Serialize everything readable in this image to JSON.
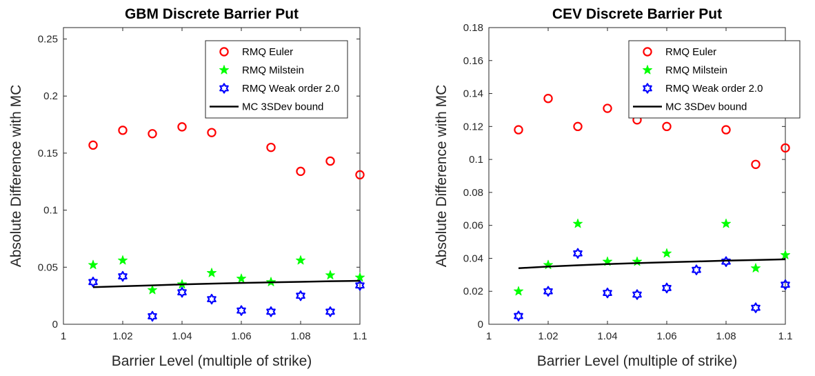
{
  "chart_data": [
    {
      "type": "scatter",
      "title": "GBM Discrete Barrier Put",
      "xlabel": "Barrier Level (multiple of strike)",
      "ylabel": "Absolute Difference with MC",
      "xlim": [
        1,
        1.1
      ],
      "ylim": [
        0,
        0.26
      ],
      "xticks": [
        "1",
        "1.02",
        "1.04",
        "1.06",
        "1.08",
        "1.1"
      ],
      "yticks": [
        "0",
        "0.05",
        "0.1",
        "0.15",
        "0.2",
        "0.25"
      ],
      "xtick_values": [
        1,
        1.02,
        1.04,
        1.06,
        1.08,
        1.1
      ],
      "ytick_values": [
        0,
        0.05,
        0.1,
        0.15,
        0.2,
        0.25
      ],
      "x": [
        1.01,
        1.02,
        1.03,
        1.04,
        1.05,
        1.06,
        1.07,
        1.08,
        1.09,
        1.1
      ],
      "legend_position": "top-right",
      "grid": false,
      "series": [
        {
          "name": "RMQ Euler",
          "marker": "circle",
          "color": "#ff0000",
          "values": [
            0.157,
            0.17,
            0.167,
            0.173,
            0.168,
            null,
            0.155,
            0.134,
            0.143,
            0.131
          ]
        },
        {
          "name": "RMQ Milstein",
          "marker": "pentagram",
          "color": "#00ff00",
          "values": [
            0.052,
            0.056,
            0.03,
            0.035,
            0.045,
            0.04,
            0.037,
            0.056,
            0.043,
            0.041
          ]
        },
        {
          "name": "RMQ Weak order 2.0",
          "marker": "hexagram",
          "color": "#0000ff",
          "values": [
            0.037,
            0.042,
            0.007,
            0.028,
            0.022,
            0.012,
            0.011,
            0.025,
            0.011,
            0.034
          ]
        },
        {
          "name": "MC 3SDev bound",
          "marker": "line",
          "color": "#000000",
          "values": [
            0.0325,
            0.0333,
            0.0341,
            0.0349,
            0.0356,
            0.0362,
            0.0367,
            0.0372,
            0.0377,
            0.0381
          ]
        }
      ]
    },
    {
      "type": "scatter",
      "title": "CEV Discrete Barrier Put",
      "xlabel": "Barrier Level (multiple of strike)",
      "ylabel": "Absolute Difference with MC",
      "xlim": [
        1,
        1.1
      ],
      "ylim": [
        0,
        0.18
      ],
      "xticks": [
        "1",
        "1.02",
        "1.04",
        "1.06",
        "1.08",
        "1.1"
      ],
      "yticks": [
        "0",
        "0.02",
        "0.04",
        "0.06",
        "0.08",
        "0.1",
        "0.12",
        "0.14",
        "0.16",
        "0.18"
      ],
      "xtick_values": [
        1,
        1.02,
        1.04,
        1.06,
        1.08,
        1.1
      ],
      "ytick_values": [
        0,
        0.02,
        0.04,
        0.06,
        0.08,
        0.1,
        0.12,
        0.14,
        0.16,
        0.18
      ],
      "x": [
        1.01,
        1.02,
        1.03,
        1.04,
        1.05,
        1.06,
        1.07,
        1.08,
        1.09,
        1.1
      ],
      "legend_position": "top-right",
      "grid": false,
      "series": [
        {
          "name": "RMQ Euler",
          "marker": "circle",
          "color": "#ff0000",
          "values": [
            0.118,
            0.137,
            0.12,
            0.131,
            0.124,
            0.12,
            null,
            0.118,
            0.097,
            0.107
          ]
        },
        {
          "name": "RMQ Milstein",
          "marker": "pentagram",
          "color": "#00ff00",
          "values": [
            0.02,
            0.036,
            0.061,
            0.038,
            0.038,
            0.043,
            null,
            0.061,
            0.034,
            0.042
          ]
        },
        {
          "name": "RMQ Weak order 2.0",
          "marker": "hexagram",
          "color": "#0000ff",
          "values": [
            0.005,
            0.02,
            0.043,
            0.019,
            0.018,
            0.022,
            0.033,
            0.038,
            0.01,
            0.024
          ]
        },
        {
          "name": "MC 3SDev bound",
          "marker": "line",
          "color": "#000000",
          "values": [
            0.034,
            0.035,
            0.0358,
            0.0365,
            0.0371,
            0.0376,
            0.0381,
            0.0386,
            0.039,
            0.0394
          ]
        }
      ]
    }
  ]
}
